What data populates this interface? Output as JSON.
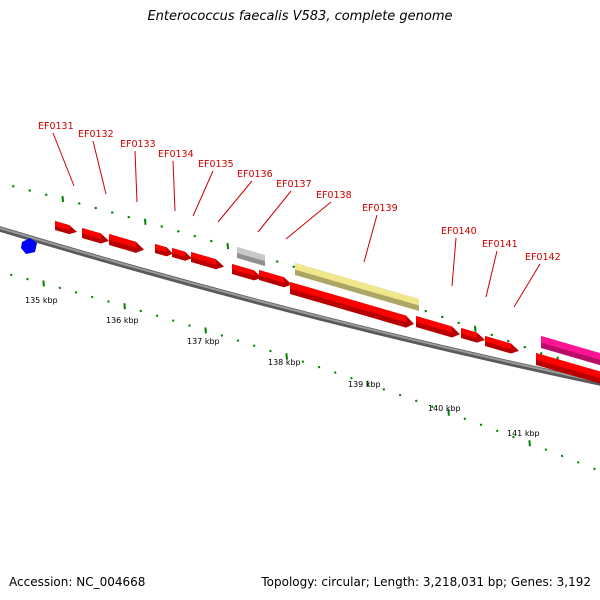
{
  "title": "Enterococcus faecalis V583, complete genome",
  "footer": {
    "accession": "Accession: NC_004668",
    "summary": "Topology: circular; Length: 3,218,031 bp; Genes: 3,192"
  },
  "scale_labels": [
    "135 kbp",
    "136 kbp",
    "137 kbp",
    "138 kbp",
    "139 kbp",
    "140 kbp",
    "141 kbp"
  ],
  "gene_labels": [
    "EF0131",
    "EF0132",
    "EF0133",
    "EF0134",
    "EF0135",
    "EF0136",
    "EF0137",
    "EF0138",
    "EF0139",
    "EF0140",
    "EF0141",
    "EF0142"
  ],
  "colors": {
    "backbone": "#808080",
    "cds": "#ff0000",
    "grey_feature": "#c8c8c8",
    "pale_feature": "#f0e68c",
    "pink_feature": "#ff1493",
    "blue_feature": "#0000ff",
    "tick": "#008000",
    "label": "#cc0000"
  }
}
